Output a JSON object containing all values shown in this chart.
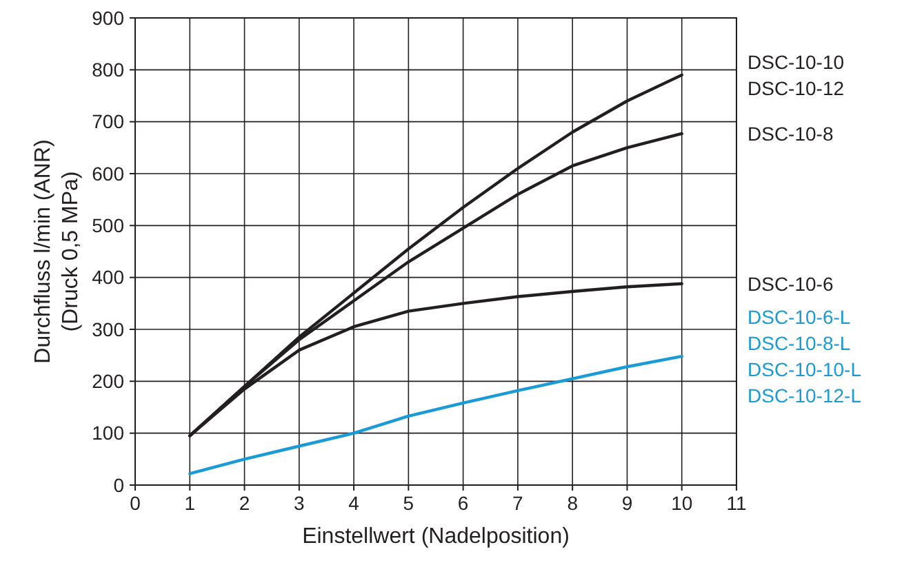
{
  "chart_data": {
    "type": "line",
    "xlabel": "Einstellwert (Nadelposition)",
    "ylabel": "Durchfluss l/min (ANR)\n(Druck 0,5 MPa)",
    "x": [
      1,
      2,
      3,
      4,
      5,
      6,
      7,
      8,
      9,
      10
    ],
    "xlim": [
      0,
      11
    ],
    "xticks": [
      0,
      1,
      2,
      3,
      4,
      5,
      6,
      7,
      8,
      9,
      10,
      11
    ],
    "ylim": [
      0,
      900
    ],
    "yticks": [
      0,
      100,
      200,
      300,
      400,
      500,
      600,
      700,
      800,
      900
    ],
    "grid": true,
    "marker": "none",
    "line_style": "solid",
    "series": [
      {
        "name": "DSC-10-10",
        "color": "#231f20",
        "values": [
          95,
          190,
          285,
          370,
          455,
          535,
          610,
          680,
          740,
          790
        ]
      },
      {
        "name": "DSC-10-8",
        "color": "#231f20",
        "values": [
          95,
          190,
          280,
          355,
          430,
          495,
          560,
          615,
          650,
          677
        ]
      },
      {
        "name": "DSC-10-6",
        "color": "#231f20",
        "values": [
          95,
          185,
          260,
          305,
          335,
          350,
          363,
          373,
          382,
          388
        ]
      },
      {
        "name": "DSC-10-6-L",
        "color": "#1a9bd7",
        "values": [
          22,
          50,
          75,
          100,
          133,
          158,
          182,
          205,
          228,
          248
        ]
      }
    ],
    "annotations": [
      "DSC-10-12",
      "DSC-10-8-L",
      "DSC-10-10-L",
      "DSC-10-12-L"
    ]
  }
}
